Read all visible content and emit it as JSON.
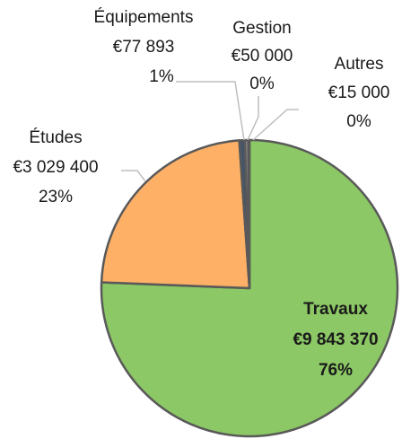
{
  "chart_data": {
    "type": "pie",
    "categories": [
      "Travaux",
      "Études",
      "Équipements",
      "Gestion",
      "Autres"
    ],
    "values": [
      9843370,
      3029400,
      77893,
      50000,
      15000
    ],
    "value_labels": [
      "€9 843 370",
      "€3 029 400",
      "€77 893",
      "€50 000",
      "€15 000"
    ],
    "percentages": [
      76,
      23,
      1,
      0,
      0
    ],
    "percentage_labels": [
      "76%",
      "23%",
      "1%",
      "0%",
      "0%"
    ],
    "colors": [
      "#8cc865",
      "#fdb066",
      "#44546a",
      "#8c8c8c",
      "#5a5a5a"
    ]
  }
}
